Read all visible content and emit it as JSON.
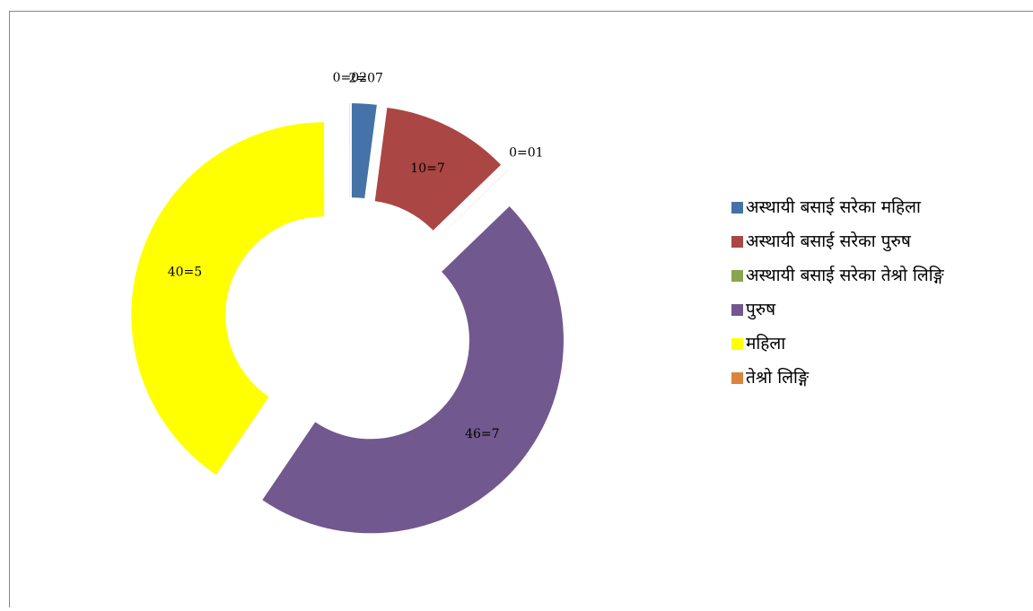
{
  "chart_data": {
    "type": "donut",
    "categories": [
      "अस्थायी बसाई सरेका महिला",
      "अस्थायी बसाई सरेका पुरुष",
      "अस्थायी बसाई सरेका तेश्रो लिङ्गि",
      "पुरुष",
      "महिला",
      "तेश्रो लिङ्गि"
    ],
    "values": [
      2.07,
      10.7,
      0.01,
      46.7,
      40.5,
      0.02
    ],
    "value_labels": [
      "2=07",
      "10=7",
      "0=01",
      "46=7",
      "40=5",
      "0=02"
    ],
    "colors": [
      "#4572a7",
      "#aa4643",
      "#89a54e",
      "#71588f",
      "#ffff00",
      "#db843d"
    ],
    "legend": "right"
  }
}
